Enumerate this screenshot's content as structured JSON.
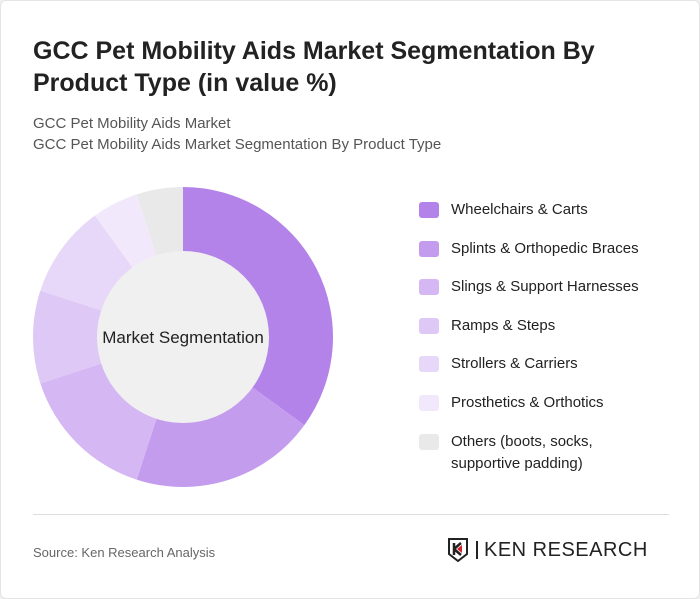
{
  "title": "GCC Pet Mobility Aids Market Segmentation By Product Type (in value %)",
  "subtitle1": "GCC Pet Mobility Aids Market",
  "subtitle2": "GCC Pet Mobility Aids Market Segmentation By Product Type",
  "source": "Source: Ken Research Analysis",
  "logo_text": "KEN RESEARCH",
  "chart_data": {
    "type": "pie",
    "variant": "donut",
    "center_label": "Market Segmentation",
    "legend_position": "right",
    "categories": [
      "Wheelchairs & Carts",
      "Splints & Orthopedic Braces",
      "Slings & Support Harnesses",
      "Ramps & Steps",
      "Strollers & Carriers",
      "Prosthetics & Orthotics",
      "Others (boots, socks, supportive padding)"
    ],
    "values": [
      35,
      20,
      15,
      10,
      10,
      5,
      5
    ],
    "colors": [
      "#b383ea",
      "#c49cee",
      "#d5b8f3",
      "#dec8f5",
      "#e7d7f8",
      "#f1e9fb",
      "#e9e9e9"
    ]
  }
}
